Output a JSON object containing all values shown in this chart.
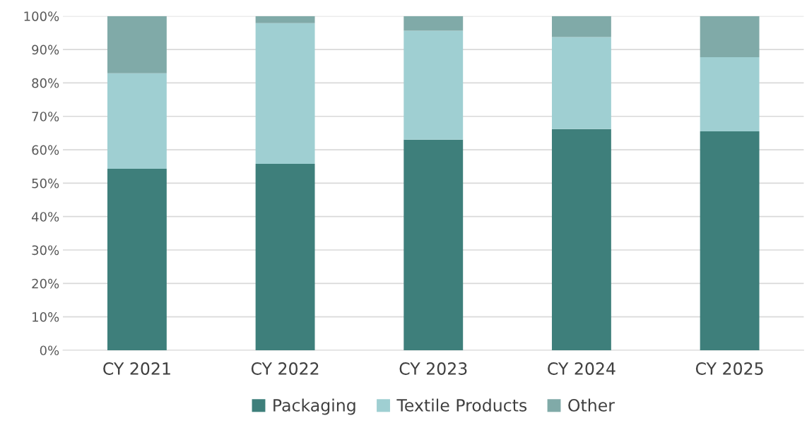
{
  "chart_data": {
    "type": "bar",
    "stacked": true,
    "categories": [
      "CY 2021",
      "CY 2022",
      "CY 2023",
      "CY 2024",
      "CY 2025"
    ],
    "series": [
      {
        "name": "Packaging",
        "color": "#3e7f7b",
        "values": [
          54.3,
          55.8,
          63.0,
          66.2,
          65.5
        ]
      },
      {
        "name": "Textile Products",
        "color": "#9fcfd2",
        "values": [
          28.6,
          42.1,
          32.6,
          27.5,
          22.2
        ]
      },
      {
        "name": "Other",
        "color": "#80aaa8",
        "values": [
          17.1,
          2.1,
          4.4,
          6.3,
          12.3
        ]
      }
    ],
    "ylim": [
      0,
      100
    ],
    "yticks": [
      {
        "value": 0,
        "label": "0%"
      },
      {
        "value": 10,
        "label": "10%"
      },
      {
        "value": 20,
        "label": "20%"
      },
      {
        "value": 30,
        "label": "30%"
      },
      {
        "value": 40,
        "label": "40%"
      },
      {
        "value": 50,
        "label": "50%"
      },
      {
        "value": 60,
        "label": "60%"
      },
      {
        "value": 70,
        "label": "70%"
      },
      {
        "value": 80,
        "label": "80%"
      },
      {
        "value": 90,
        "label": "90%"
      },
      {
        "value": 100,
        "label": "100%"
      }
    ],
    "grid": "y",
    "legend": "bottom"
  }
}
